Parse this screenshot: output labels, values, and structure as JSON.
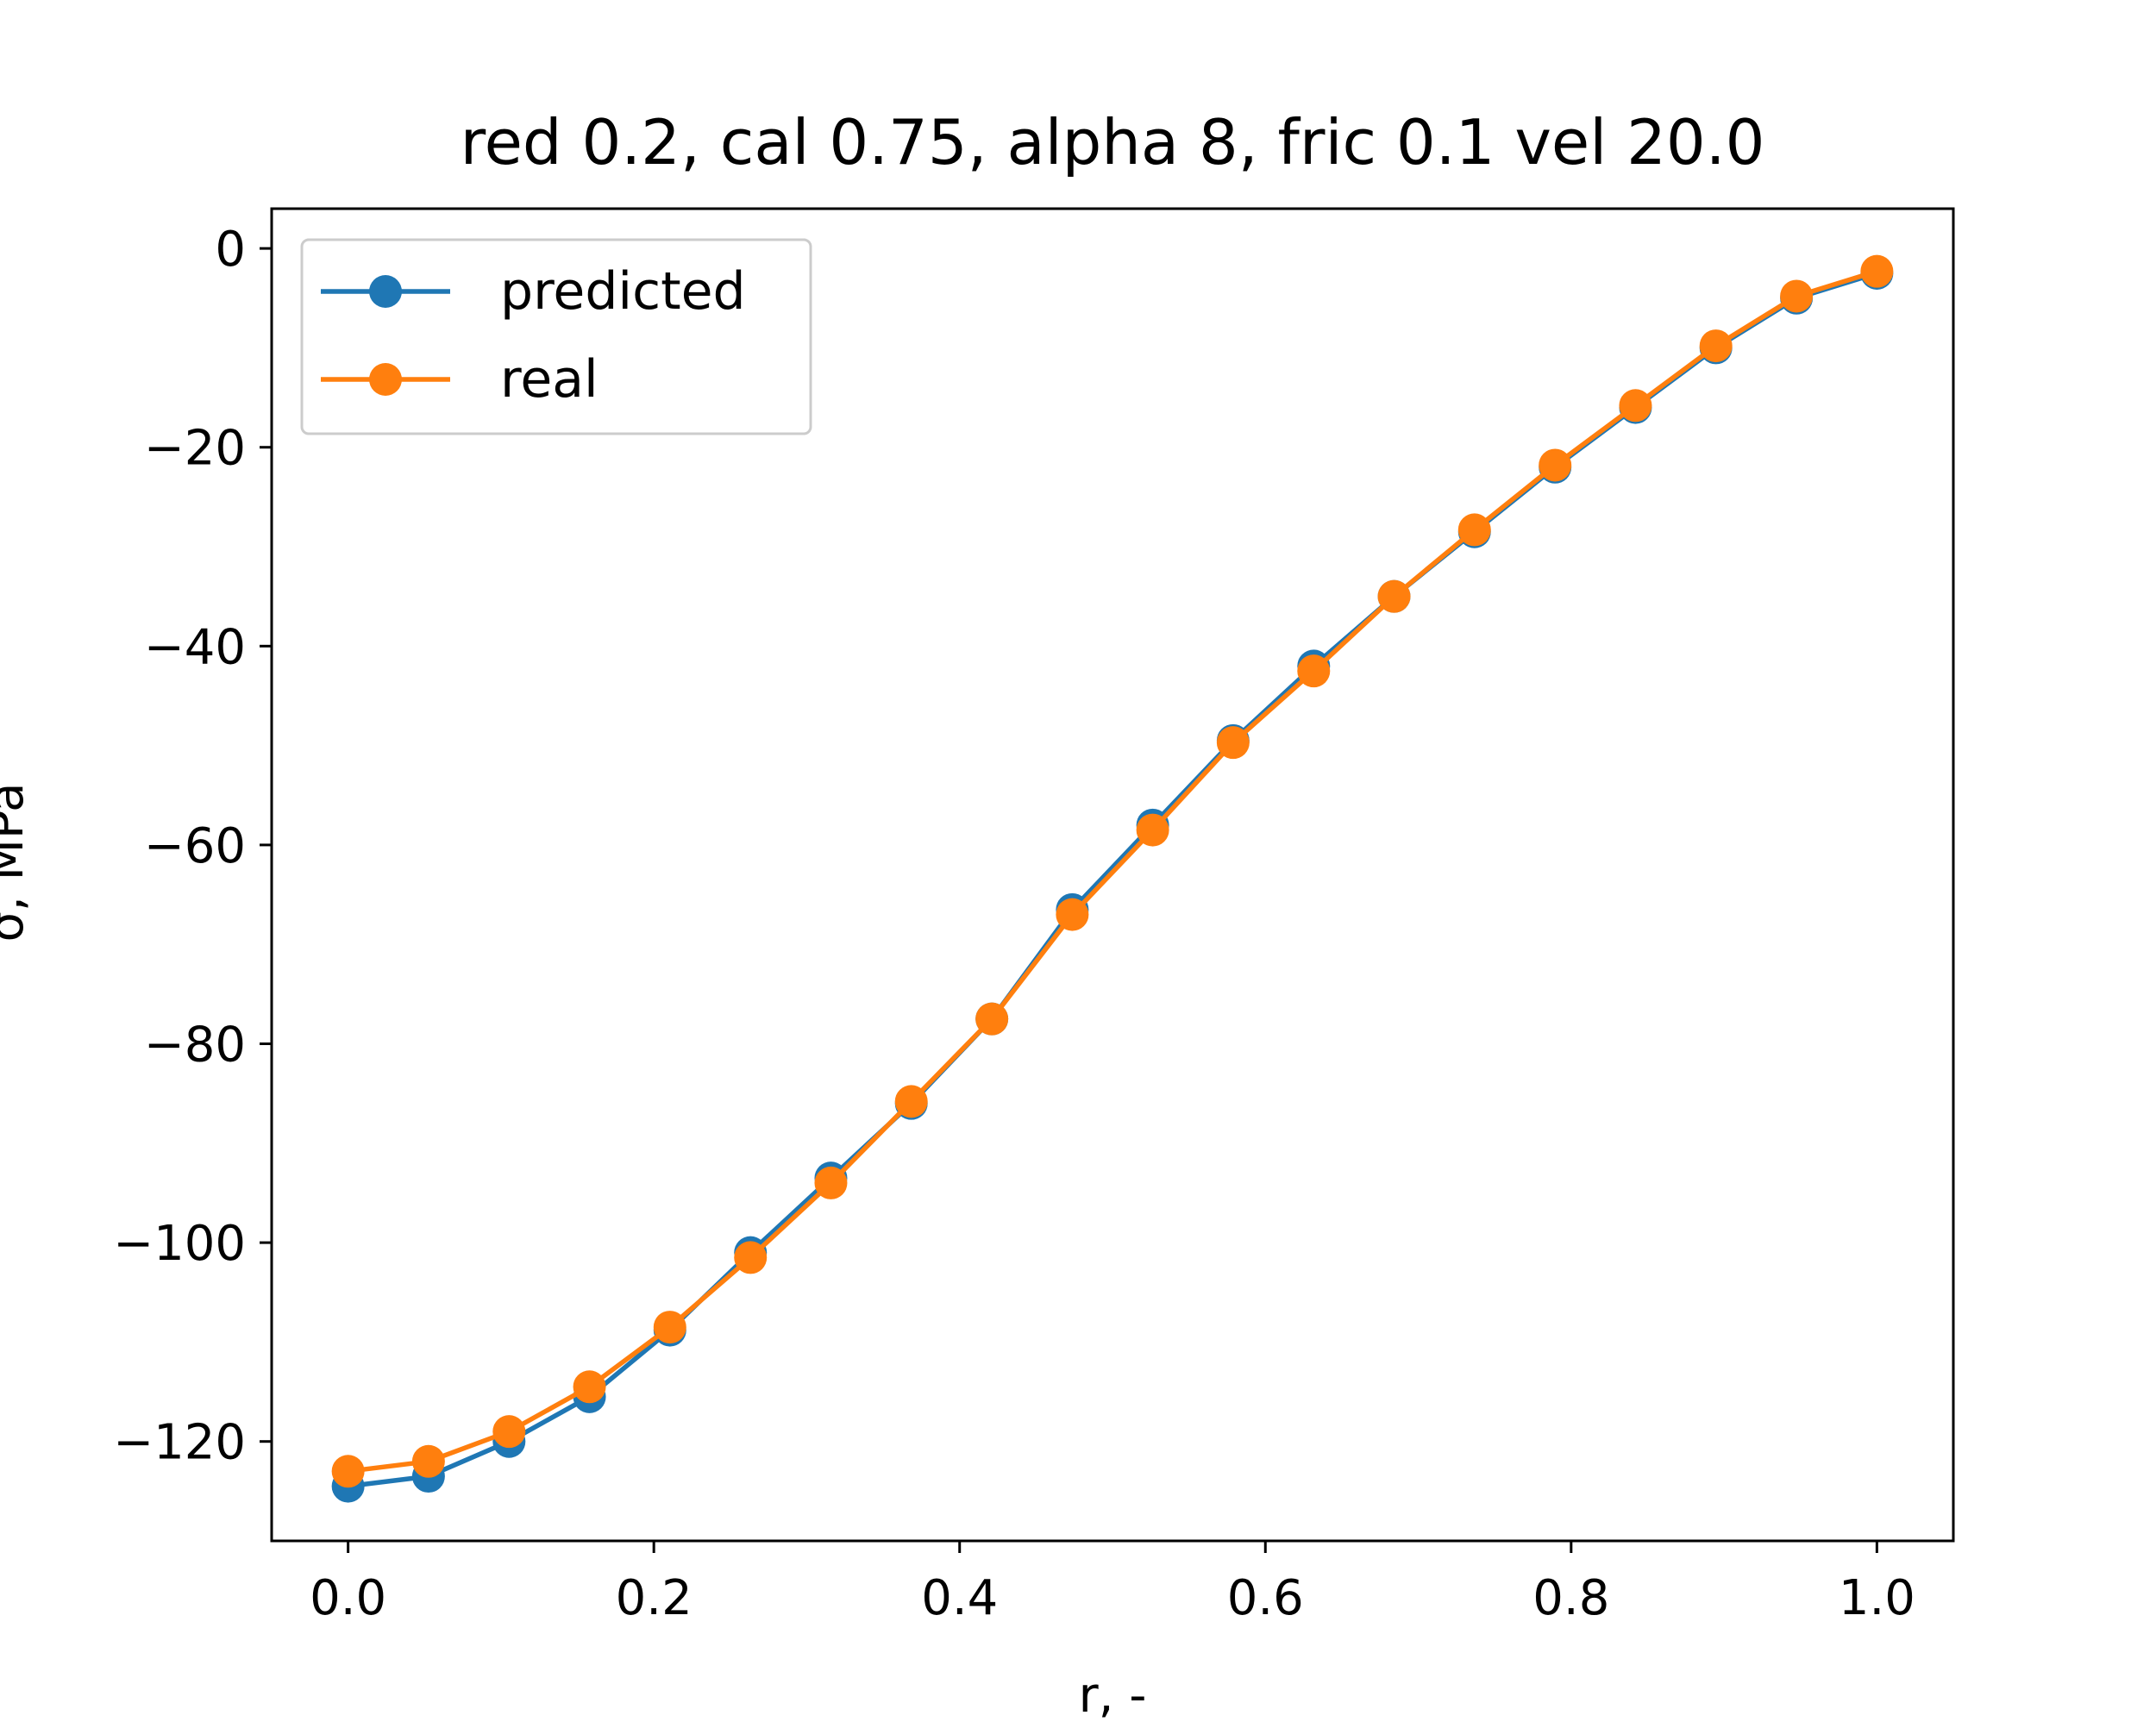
{
  "chart_data": {
    "type": "line",
    "title": "red 0.2, cal 0.75, alpha 8, fric 0.1 vel 20.0",
    "xlabel": "r, -",
    "ylabel": "σ, MPa",
    "xlim": [
      -0.05,
      1.05
    ],
    "ylim": [
      -130,
      4
    ],
    "xticks": [
      0.0,
      0.2,
      0.4,
      0.6,
      0.8,
      1.0
    ],
    "xtick_labels": [
      "0.0",
      "0.2",
      "0.4",
      "0.6",
      "0.8",
      "1.0"
    ],
    "yticks": [
      0,
      -20,
      -40,
      -60,
      -80,
      -100,
      -120
    ],
    "ytick_labels": [
      "0",
      "−20",
      "−40",
      "−60",
      "−80",
      "−100",
      "−120"
    ],
    "grid": false,
    "legend_position": "upper-left",
    "x": [
      0.0,
      0.0526,
      0.1053,
      0.1579,
      0.2105,
      0.2632,
      0.3158,
      0.3684,
      0.4211,
      0.4737,
      0.5263,
      0.5789,
      0.6316,
      0.6842,
      0.7368,
      0.7895,
      0.8421,
      0.8947,
      0.9474,
      1.0
    ],
    "series": [
      {
        "name": "predicted",
        "color": "#1f77b4",
        "marker": "circle",
        "values": [
          -124.5,
          -123.5,
          -120.0,
          -115.5,
          -108.8,
          -101.0,
          -93.5,
          -86.0,
          -77.5,
          -66.5,
          -58.0,
          -49.5,
          -42.0,
          -35.0,
          -28.5,
          -22.0,
          -16.0,
          -10.0,
          -5.0,
          -2.5
        ]
      },
      {
        "name": "real",
        "color": "#ff7f0e",
        "marker": "circle",
        "values": [
          -123.0,
          -122.0,
          -119.0,
          -114.5,
          -108.5,
          -101.5,
          -94.0,
          -85.8,
          -77.5,
          -67.0,
          -58.5,
          -49.7,
          -42.5,
          -35.0,
          -28.3,
          -21.8,
          -15.8,
          -9.8,
          -4.8,
          -2.3
        ]
      }
    ]
  }
}
